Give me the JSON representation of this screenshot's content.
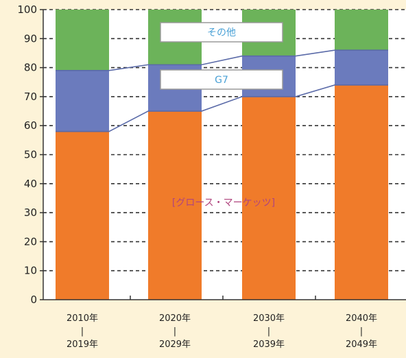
{
  "chart_data": {
    "type": "bar",
    "stacked": true,
    "categories": [
      [
        "2010年",
        "|",
        "2019年"
      ],
      [
        "2020年",
        "|",
        "2029年"
      ],
      [
        "2030年",
        "|",
        "2039年"
      ],
      [
        "2040年",
        "|",
        "2049年"
      ]
    ],
    "series": [
      {
        "name": "グロース・マーケッツ",
        "values": [
          58,
          65,
          70,
          74
        ],
        "color": "#f07b2a"
      },
      {
        "name": "G7",
        "values": [
          21,
          16,
          14,
          12
        ],
        "color": "#6b7bbd"
      },
      {
        "name": "その他",
        "values": [
          21,
          19,
          16,
          14
        ],
        "color": "#6cb35a"
      }
    ],
    "y_ticks": [
      0,
      10,
      20,
      30,
      40,
      50,
      60,
      70,
      80,
      90,
      100
    ],
    "ylim": [
      0,
      100
    ],
    "grid": true,
    "annotations": [
      {
        "text": "その他",
        "series": "その他",
        "color": "#4aa1d6"
      },
      {
        "text": "G7",
        "series": "G7",
        "color": "#4aa1d6"
      },
      {
        "text": "[グロース・マーケッツ]",
        "series": "グロース・マーケッツ",
        "color": "#b0457e"
      }
    ],
    "connector_lines": [
      {
        "from_bar": 0,
        "to_bar": 3,
        "at_boundary": "G7/その他"
      },
      {
        "from_bar": 0,
        "to_bar": 3,
        "at_boundary": "グロース・マーケッツ/G7"
      }
    ]
  }
}
